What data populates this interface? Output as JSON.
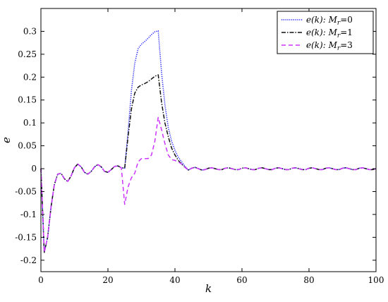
{
  "chart_data": {
    "type": "line",
    "xlabel": "k",
    "ylabel": "e",
    "xlim": [
      0,
      100
    ],
    "ylim": [
      -0.225,
      0.35
    ],
    "x_ticks": [
      0,
      20,
      40,
      60,
      80,
      100
    ],
    "x_tick_labels": [
      "0",
      "20",
      "40",
      "60",
      "80",
      "100"
    ],
    "y_ticks": [
      -0.2,
      -0.15,
      -0.1,
      -0.05,
      0,
      0.05,
      0.1,
      0.15,
      0.2,
      0.25,
      0.3
    ],
    "y_tick_labels": [
      "-0.2",
      "-0.15",
      "-0.1",
      "-0.05",
      "0",
      "0.05",
      "0.1",
      "0.15",
      "0.2",
      "0.25",
      "0.3"
    ],
    "grid": false,
    "legend_position": "top-right",
    "series": [
      {
        "name": "e(k): Mr=0",
        "legend_func": "e(k):",
        "legend_var": "M",
        "legend_sub": "r",
        "legend_val": "=0",
        "color": "#1a1aff",
        "style": "dotted",
        "x": [
          0,
          1,
          2,
          3,
          4,
          5,
          6,
          7,
          8,
          9,
          10,
          11,
          12,
          13,
          14,
          15,
          16,
          17,
          18,
          19,
          20,
          21,
          22,
          23,
          24,
          25,
          26,
          27,
          28,
          29,
          30,
          31,
          32,
          33,
          34,
          35,
          36,
          37,
          38,
          39,
          40,
          41,
          42,
          43,
          44,
          45,
          46,
          47,
          48,
          49,
          50,
          51,
          52,
          53,
          54,
          55,
          56,
          57,
          58,
          59,
          60,
          61,
          62,
          63,
          64,
          65,
          66,
          67,
          68,
          69,
          70,
          71,
          72,
          73,
          74,
          75,
          76,
          77,
          78,
          79,
          80,
          81,
          82,
          83,
          84,
          85,
          86,
          87,
          88,
          89,
          90,
          91,
          92,
          93,
          94,
          95,
          96,
          97,
          98,
          99,
          100
        ],
        "y": [
          0,
          -0.183,
          -0.15,
          -0.085,
          -0.035,
          -0.012,
          -0.01,
          -0.022,
          -0.028,
          -0.016,
          0.002,
          0.01,
          0.004,
          -0.008,
          -0.012,
          -0.006,
          0.004,
          0.009,
          0.004,
          -0.006,
          -0.008,
          -0.002,
          0.005,
          0.006,
          0.002,
          0.001,
          0.08,
          0.17,
          0.23,
          0.262,
          0.272,
          0.278,
          0.285,
          0.293,
          0.299,
          0.301,
          0.21,
          0.14,
          0.09,
          0.06,
          0.04,
          0.025,
          0.015,
          0.005,
          -0.003,
          0.001,
          0.003,
          0.0,
          -0.003,
          -0.002,
          0.001,
          0.002,
          0.0,
          -0.002,
          -0.002,
          0.001,
          0.002,
          0.0,
          -0.002,
          -0.002,
          0.001,
          0.002,
          0.0,
          -0.002,
          -0.002,
          0.001,
          0.002,
          0.0,
          -0.002,
          -0.002,
          0.001,
          0.002,
          0.0,
          -0.002,
          -0.002,
          0.001,
          0.002,
          0.0,
          -0.002,
          -0.002,
          0.001,
          0.002,
          0.0,
          -0.002,
          -0.002,
          0.001,
          0.002,
          0.0,
          -0.002,
          -0.002,
          0.001,
          0.002,
          0.0,
          -0.002,
          -0.002,
          0.001,
          0.002,
          0.0,
          -0.002,
          -0.002,
          0.0
        ]
      },
      {
        "name": "e(k): Mr=1",
        "legend_func": "e(k):",
        "legend_var": "M",
        "legend_sub": "r",
        "legend_val": "=1",
        "color": "#111111",
        "style": "dashdot",
        "x": [
          0,
          1,
          2,
          3,
          4,
          5,
          6,
          7,
          8,
          9,
          10,
          11,
          12,
          13,
          14,
          15,
          16,
          17,
          18,
          19,
          20,
          21,
          22,
          23,
          24,
          25,
          26,
          27,
          28,
          29,
          30,
          31,
          32,
          33,
          34,
          35,
          36,
          37,
          38,
          39,
          40,
          41,
          42,
          43,
          44,
          45,
          46,
          47,
          48,
          49,
          50,
          51,
          52,
          53,
          54,
          55,
          56,
          57,
          58,
          59,
          60,
          61,
          62,
          63,
          64,
          65,
          66,
          67,
          68,
          69,
          70,
          71,
          72,
          73,
          74,
          75,
          76,
          77,
          78,
          79,
          80,
          81,
          82,
          83,
          84,
          85,
          86,
          87,
          88,
          89,
          90,
          91,
          92,
          93,
          94,
          95,
          96,
          97,
          98,
          99,
          100
        ],
        "y": [
          0,
          -0.183,
          -0.15,
          -0.085,
          -0.035,
          -0.012,
          -0.01,
          -0.022,
          -0.028,
          -0.016,
          0.002,
          0.01,
          0.004,
          -0.008,
          -0.012,
          -0.006,
          0.004,
          0.009,
          0.004,
          -0.006,
          -0.008,
          -0.002,
          0.005,
          0.006,
          0.002,
          0.001,
          0.07,
          0.13,
          0.165,
          0.178,
          0.183,
          0.186,
          0.19,
          0.196,
          0.202,
          0.205,
          0.145,
          0.1,
          0.07,
          0.045,
          0.03,
          0.018,
          0.01,
          0.003,
          -0.003,
          0.001,
          0.003,
          0.0,
          -0.003,
          -0.002,
          0.001,
          0.002,
          0.0,
          -0.002,
          -0.002,
          0.001,
          0.002,
          0.0,
          -0.002,
          -0.002,
          0.001,
          0.002,
          0.0,
          -0.002,
          -0.002,
          0.001,
          0.002,
          0.0,
          -0.002,
          -0.002,
          0.001,
          0.002,
          0.0,
          -0.002,
          -0.002,
          0.001,
          0.002,
          0.0,
          -0.002,
          -0.002,
          0.001,
          0.002,
          0.0,
          -0.002,
          -0.002,
          0.001,
          0.002,
          0.0,
          -0.002,
          -0.002,
          0.001,
          0.002,
          0.0,
          -0.002,
          -0.002,
          0.001,
          0.002,
          0.0,
          -0.002,
          -0.002,
          0.0
        ]
      },
      {
        "name": "e(k): Mr=3",
        "legend_func": "e(k):",
        "legend_var": "M",
        "legend_sub": "r",
        "legend_val": "=3",
        "color": "#cc33ff",
        "style": "dashed",
        "x": [
          0,
          1,
          2,
          3,
          4,
          5,
          6,
          7,
          8,
          9,
          10,
          11,
          12,
          13,
          14,
          15,
          16,
          17,
          18,
          19,
          20,
          21,
          22,
          23,
          24,
          25,
          26,
          27,
          28,
          29,
          30,
          31,
          32,
          33,
          34,
          35,
          36,
          37,
          38,
          39,
          40,
          41,
          42,
          43,
          44,
          45,
          46,
          47,
          48,
          49,
          50,
          51,
          52,
          53,
          54,
          55,
          56,
          57,
          58,
          59,
          60,
          61,
          62,
          63,
          64,
          65,
          66,
          67,
          68,
          69,
          70,
          71,
          72,
          73,
          74,
          75,
          76,
          77,
          78,
          79,
          80,
          81,
          82,
          83,
          84,
          85,
          86,
          87,
          88,
          89,
          90,
          91,
          92,
          93,
          94,
          95,
          96,
          97,
          98,
          99,
          100
        ],
        "y": [
          0,
          -0.183,
          -0.15,
          -0.085,
          -0.035,
          -0.012,
          -0.01,
          -0.022,
          -0.028,
          -0.016,
          0.002,
          0.01,
          0.004,
          -0.008,
          -0.012,
          -0.006,
          0.004,
          0.009,
          0.004,
          -0.006,
          -0.008,
          -0.002,
          0.005,
          0.006,
          0.002,
          -0.078,
          -0.04,
          -0.02,
          -0.01,
          0.015,
          0.022,
          0.022,
          0.022,
          0.03,
          0.06,
          0.112,
          0.085,
          0.055,
          0.03,
          0.02,
          0.018,
          0.015,
          0.01,
          0.003,
          -0.003,
          0.001,
          0.003,
          0.0,
          -0.003,
          -0.002,
          0.001,
          0.002,
          0.0,
          -0.002,
          -0.002,
          0.001,
          0.002,
          0.0,
          -0.002,
          -0.002,
          0.001,
          0.002,
          0.0,
          -0.002,
          -0.002,
          0.001,
          0.002,
          0.0,
          -0.002,
          -0.002,
          0.001,
          0.002,
          0.0,
          -0.002,
          -0.002,
          0.001,
          0.002,
          0.0,
          -0.002,
          -0.002,
          0.001,
          0.002,
          0.0,
          -0.002,
          -0.002,
          0.001,
          0.002,
          0.0,
          -0.002,
          -0.002,
          0.001,
          0.002,
          0.0,
          -0.002,
          -0.002,
          0.001,
          0.002,
          0.0,
          -0.002,
          -0.002,
          0.0
        ]
      }
    ]
  }
}
